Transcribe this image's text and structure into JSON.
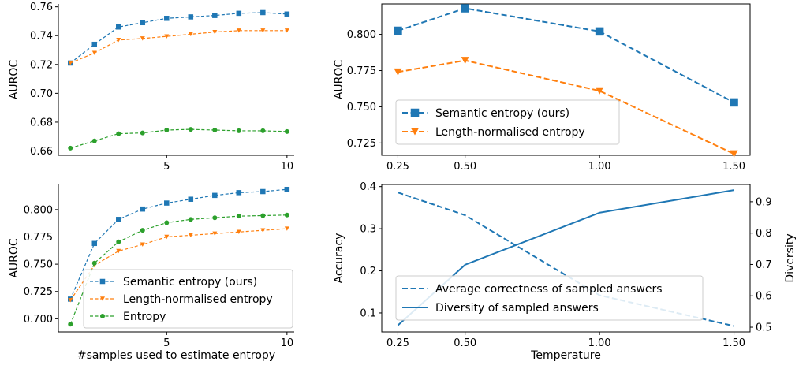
{
  "chart_data": [
    {
      "type": "line",
      "id": "tl",
      "xlabel": "",
      "ylabel": "AUROC",
      "xlim": [
        0.5,
        10.3
      ],
      "ylim": [
        0.657,
        0.762
      ],
      "xticks": [
        5,
        10
      ],
      "yticks": [
        0.66,
        0.68,
        0.7,
        0.72,
        0.74,
        0.76
      ],
      "ytick_labels": [
        "0.66",
        "0.68",
        "0.70",
        "0.72",
        "0.74",
        "0.76"
      ],
      "xtick_labels": [
        "5",
        "10"
      ],
      "x": [
        1,
        2,
        3,
        4,
        5,
        6,
        7,
        8,
        9,
        10
      ],
      "legend": null,
      "series": [
        {
          "name": "Semantic entropy (ours)",
          "color": "#1f77b4",
          "marker": "square",
          "values": [
            0.721,
            0.734,
            0.746,
            0.749,
            0.752,
            0.753,
            0.754,
            0.7555,
            0.756,
            0.755
          ]
        },
        {
          "name": "Length-normalised entropy",
          "color": "#ff7f0e",
          "marker": "triangle-down",
          "values": [
            0.721,
            0.728,
            0.737,
            0.738,
            0.7395,
            0.741,
            0.7425,
            0.7435,
            0.7435,
            0.7435
          ]
        },
        {
          "name": "Entropy",
          "color": "#2ca02c",
          "marker": "circle",
          "values": [
            0.662,
            0.667,
            0.672,
            0.6725,
            0.6745,
            0.675,
            0.6745,
            0.674,
            0.674,
            0.6735
          ]
        }
      ]
    },
    {
      "type": "line",
      "id": "bl",
      "xlabel": "#samples used to estimate entropy",
      "ylabel": "AUROC",
      "xlim": [
        0.5,
        10.3
      ],
      "ylim": [
        0.688,
        0.823
      ],
      "xticks": [
        5,
        10
      ],
      "xtick_labels": [
        "5",
        "10"
      ],
      "yticks": [
        0.7,
        0.725,
        0.75,
        0.775,
        0.8
      ],
      "ytick_labels": [
        "0.700",
        "0.725",
        "0.750",
        "0.775",
        "0.800"
      ],
      "x": [
        1,
        2,
        3,
        4,
        5,
        6,
        7,
        8,
        9,
        10
      ],
      "legend": "bottom-right",
      "series": [
        {
          "name": "Semantic entropy (ours)",
          "color": "#1f77b4",
          "marker": "square",
          "values": [
            0.718,
            0.769,
            0.791,
            0.8005,
            0.806,
            0.8095,
            0.813,
            0.8155,
            0.8165,
            0.8185
          ]
        },
        {
          "name": "Length-normalised entropy",
          "color": "#ff7f0e",
          "marker": "triangle-down",
          "values": [
            0.717,
            0.749,
            0.762,
            0.768,
            0.775,
            0.7765,
            0.778,
            0.7795,
            0.781,
            0.7825
          ]
        },
        {
          "name": "Entropy",
          "color": "#2ca02c",
          "marker": "circle",
          "values": [
            0.695,
            0.751,
            0.7705,
            0.781,
            0.788,
            0.791,
            0.7925,
            0.794,
            0.7945,
            0.795
          ]
        }
      ]
    },
    {
      "type": "line",
      "id": "tr",
      "xlabel": "",
      "ylabel": "AUROC",
      "xlim": [
        0.19,
        1.56
      ],
      "ylim": [
        0.7165,
        0.821
      ],
      "xticks": [
        0.25,
        0.5,
        1.0,
        1.5
      ],
      "xtick_labels": [
        "0.25",
        "0.50",
        "1.00",
        "1.50"
      ],
      "yticks": [
        0.725,
        0.75,
        0.775,
        0.8
      ],
      "ytick_labels": [
        "0.725",
        "0.750",
        "0.775",
        "0.800"
      ],
      "x": [
        0.25,
        0.5,
        1.0,
        1.5
      ],
      "legend": "bottom-left",
      "series": [
        {
          "name": "Semantic entropy (ours)",
          "color": "#1f77b4",
          "marker": "square",
          "values": [
            0.8025,
            0.818,
            0.802,
            0.753
          ]
        },
        {
          "name": "Length-normalised entropy",
          "color": "#ff7f0e",
          "marker": "triangle-down",
          "values": [
            0.774,
            0.782,
            0.761,
            0.7175
          ]
        }
      ]
    },
    {
      "type": "line",
      "id": "br",
      "xlabel": "Temperature",
      "ylabel": "Accuracy",
      "y2label": "Diversity",
      "xlim": [
        0.19,
        1.56
      ],
      "ylim": [
        0.055,
        0.405
      ],
      "y2lim": [
        0.485,
        0.955
      ],
      "xticks": [
        0.25,
        0.5,
        1.0,
        1.5
      ],
      "xtick_labels": [
        "0.25",
        "0.50",
        "1.00",
        "1.50"
      ],
      "yticks": [
        0.1,
        0.2,
        0.3,
        0.4
      ],
      "ytick_labels": [
        "0.1",
        "0.2",
        "0.3",
        "0.4"
      ],
      "y2ticks": [
        0.5,
        0.6,
        0.7,
        0.8,
        0.9
      ],
      "y2tick_labels": [
        "0.5",
        "0.6",
        "0.7",
        "0.8",
        "0.9"
      ],
      "x": [
        0.25,
        0.5,
        1.0,
        1.5
      ],
      "legend": "bottom-left",
      "series": [
        {
          "name": "Average correctness of sampled answers",
          "color": "#1f77b4",
          "dash": true,
          "axis": "left",
          "values": [
            0.386,
            0.332,
            0.142,
            0.069
          ]
        },
        {
          "name": "Diversity of sampled answers",
          "color": "#1f77b4",
          "dash": false,
          "axis": "right",
          "values": [
            0.506,
            0.699,
            0.865,
            0.937
          ]
        }
      ]
    }
  ]
}
